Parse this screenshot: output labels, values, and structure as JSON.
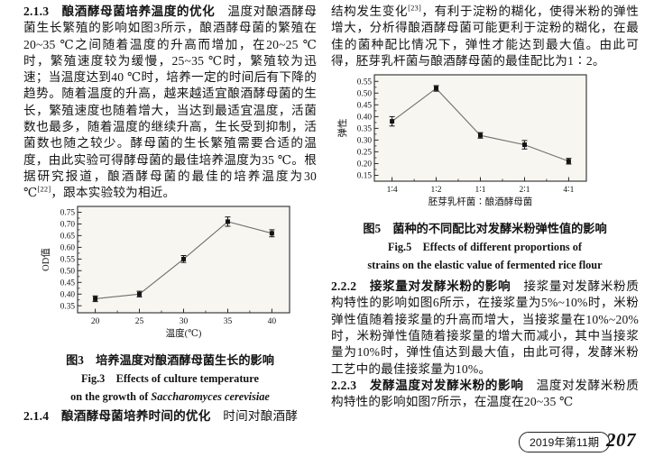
{
  "left": {
    "s213": {
      "heading": "2.1.3　酿酒酵母菌培养温度的优化",
      "text_a": "　温度对酿酒酵母菌生长繁殖的影响如图3所示，酿酒酵母菌的繁殖在20~35 ℃之间随着温度的升高而增加，在20~25 ℃时，繁殖速度较为缓慢，25~35 ℃时，繁殖较为迅速；当温度达到40 ℃时，培养一定的时间后有下降的趋势。随着温度的升高，越来越适宜酿酒酵母菌的生长，繁殖速度也随着增大，当达到最适宜温度，活菌数也最多，随着温度的继续升高，生长受到抑制，活菌数也随之较少。酵母菌的生长繁殖需要合适的温度，由此实验可得酵母菌的最佳培养温度为35 ℃。根据研究报道，酿酒酵母菌的最佳的培养温度为30 ℃",
      "citation": "[22]",
      "text_b": "，跟本实验较为相近。"
    },
    "fig3": {
      "caption_cn": "图3　培养温度对酿酒酵母菌生长的影响",
      "caption_en_line1": "Fig.3　Effects of culture temperature",
      "caption_en_line2_prefix": "on the growth of ",
      "caption_en_line2_species": "Saccharomyces cerevisiae"
    },
    "s214": {
      "heading": "2.1.4　酿酒酵母菌培养时间的优化",
      "text": "　时间对酿酒酵"
    }
  },
  "right": {
    "intro": {
      "text_a": "结构发生变化",
      "citation": "[23]",
      "text_b": "，有利于淀粉的糊化，使得米粉的弹性增大，分析得酿酒酵母菌可能更利于淀粉的糊化，在最佳的菌种配比情况下，弹性才能达到最大值。由此可得，胚芽乳杆菌与酿酒酵母菌的最佳配比为1∶2。"
    },
    "fig5": {
      "caption_cn": "图5　菌种的不同配比对发酵米粉弹性值的影响",
      "caption_en_line1": "Fig.5　Effects of different proportions of",
      "caption_en_line2": "strains on the elastic value of fermented rice flour"
    },
    "s222": {
      "heading": "2.2.2　接浆量对发酵米粉的影响",
      "text": "　接浆量对发酵米粉质构特性的影响如图6所示，在接浆量为5%~10%时，米粉弹性值随着接浆量的升高而增大，当接浆量在10%~20%时，米粉弹性值随着接浆量的增大而减小，其中当接浆量为10%时，弹性值达到最大值，由此可得，发酵米粉工艺中的最佳接浆量为10%。"
    },
    "s223": {
      "heading": "2.2.3　发酵温度对发酵米粉的影响",
      "text": "　温度对发酵米粉质构特性的影响如图7所示，在温度在20~35 ℃"
    }
  },
  "footer": {
    "issue": "2019年第11期",
    "page_number": "207"
  },
  "chart_data": [
    {
      "type": "line",
      "title": "图3 培养温度对酿酒酵母菌生长的影响",
      "categories": [
        "20",
        "25",
        "30",
        "35",
        "40"
      ],
      "values": [
        0.38,
        0.4,
        0.55,
        0.71,
        0.66
      ],
      "errors": [
        0.012,
        0.012,
        0.015,
        0.02,
        0.015
      ],
      "xlabel": "温度(℃)",
      "ylabel": "OD值",
      "yticks": [
        0.35,
        0.4,
        0.45,
        0.5,
        0.55,
        0.6,
        0.65,
        0.7,
        0.75
      ],
      "ylim": [
        0.32,
        0.775
      ],
      "grid": false,
      "legend": "none",
      "marker": "filled-square-with-error-bars",
      "line_color": "#6f6f6f",
      "marker_color": "#141414",
      "plot_bg": "#f8f6f1"
    },
    {
      "type": "line",
      "title": "图5 菌种的不同配比对发酵米粉弹性值的影响",
      "categories": [
        "1∶4",
        "1∶2",
        "1∶1",
        "2∶1",
        "4∶1"
      ],
      "values": [
        0.38,
        0.52,
        0.32,
        0.28,
        0.21
      ],
      "errors": [
        0.02,
        0.012,
        0.012,
        0.018,
        0.012
      ],
      "xlabel": "胚芽乳杆菌∶酿酒酵母菌",
      "ylabel": "弹性",
      "yticks": [
        0.15,
        0.2,
        0.25,
        0.3,
        0.35,
        0.4,
        0.45,
        0.5,
        0.55
      ],
      "ylim": [
        0.125,
        0.578
      ],
      "grid": false,
      "legend": "none",
      "marker": "filled-square-with-error-bars",
      "line_color": "#6f6f6f",
      "marker_color": "#141414",
      "plot_bg": "#f8f6f1"
    }
  ]
}
